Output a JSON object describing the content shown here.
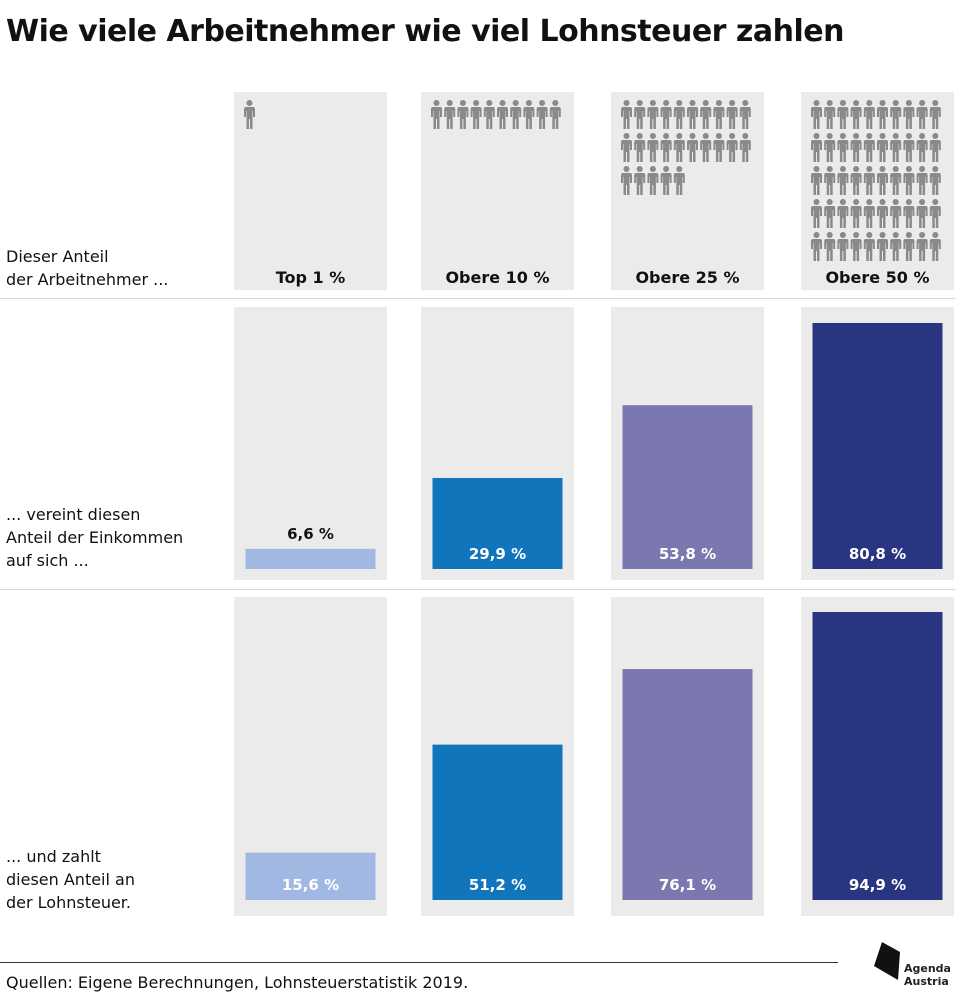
{
  "title": "Wie viele Arbeitnehmer wie viel Lohnsteuer zahlen",
  "row_labels": {
    "share_employees": [
      "Dieser Anteil",
      "der Arbeitnehmer ..."
    ],
    "share_income": [
      "... vereint diesen",
      "Anteil der Einkommen",
      "auf sich  ..."
    ],
    "share_tax": [
      "... und zahlt",
      "diesen Anteil an",
      "der Lohnsteuer."
    ]
  },
  "source": "Quellen: Eigene Berechnungen, Lohnsteuerstatistik 2019.",
  "logo": {
    "line1": "Agenda",
    "line2": "Austria"
  },
  "chart_data": {
    "type": "bar",
    "categories": [
      "Top 1 %",
      "Obere 10 %",
      "Obere 25 %",
      "Obere 50 %"
    ],
    "people_icons": [
      1,
      10,
      25,
      50
    ],
    "series": [
      {
        "values": [
          6.6,
          29.9,
          53.8,
          80.8
        ],
        "labels": [
          "6,6 %",
          "29,9 %",
          "53,8 %",
          "80,8 %"
        ]
      },
      {
        "values": [
          15.6,
          51.2,
          76.1,
          94.9
        ],
        "labels": [
          "15,6 %",
          "51,2 %",
          "76,1 %",
          "94,9 %"
        ]
      }
    ],
    "ylim": [
      0,
      100
    ],
    "colors": [
      "#a0b8e2",
      "#1175bc",
      "#7b78b0",
      "#293580"
    ],
    "panel_color": "#ebebeb",
    "icon_color": "#8a8a8a"
  }
}
